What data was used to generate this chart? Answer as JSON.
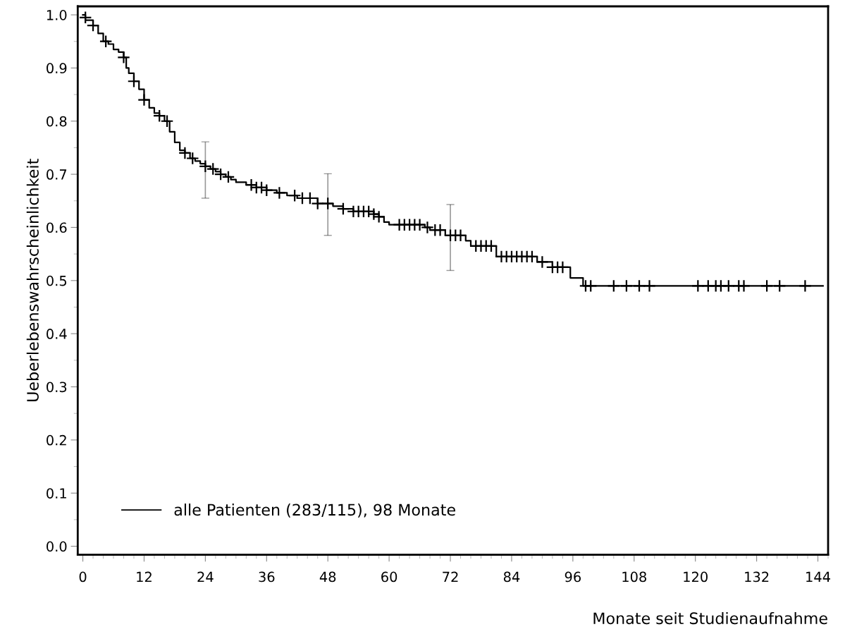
{
  "chart_data": {
    "type": "step",
    "xlabel": "Monate seit Studienaufnahme",
    "ylabel": "Ueberlebenswahrscheinlichkeit",
    "xlim": [
      -1,
      146
    ],
    "ylim": [
      -0.016,
      1.016
    ],
    "xticks": [
      0,
      12,
      24,
      36,
      48,
      60,
      72,
      84,
      96,
      108,
      120,
      132,
      144
    ],
    "yticks": [
      {
        "value": 0,
        "label": "0.0"
      },
      0.1,
      0.2,
      0.3,
      0.4,
      0.5,
      0.6,
      0.7,
      0.8,
      0.9,
      {
        "value": 1,
        "label": "1.0"
      }
    ],
    "grid": false,
    "legend": "bottom left",
    "series": [
      {
        "name": "alle Patienten (283/115), 98 Monate",
        "color": "#000000",
        "x": [
          0,
          0.5,
          2,
          3,
          4,
          5,
          6,
          7,
          8,
          8.5,
          9,
          10,
          11,
          12,
          13,
          14,
          15,
          16,
          17,
          18,
          19,
          20,
          21,
          22,
          23,
          24,
          25,
          26,
          27,
          28,
          29,
          30,
          32,
          34,
          36,
          38,
          40,
          42,
          46,
          48,
          49,
          51,
          53,
          57,
          58,
          59,
          60,
          67,
          68,
          71,
          72,
          75,
          76,
          81,
          89,
          92,
          95.5,
          98,
          145
        ],
        "values": [
          1.0,
          0.99,
          0.98,
          0.965,
          0.95,
          0.945,
          0.935,
          0.93,
          0.92,
          0.9,
          0.89,
          0.875,
          0.86,
          0.84,
          0.825,
          0.815,
          0.81,
          0.8,
          0.78,
          0.76,
          0.745,
          0.74,
          0.73,
          0.725,
          0.72,
          0.715,
          0.71,
          0.705,
          0.7,
          0.695,
          0.69,
          0.685,
          0.68,
          0.675,
          0.67,
          0.665,
          0.66,
          0.655,
          0.645,
          0.645,
          0.64,
          0.635,
          0.63,
          0.625,
          0.62,
          0.61,
          0.605,
          0.6,
          0.595,
          0.585,
          0.585,
          0.575,
          0.565,
          0.545,
          0.535,
          0.525,
          0.505,
          0.49,
          0.49
        ],
        "errors": [
          null,
          null,
          null,
          null,
          null,
          null,
          null,
          null,
          null,
          null,
          null,
          null,
          null,
          null,
          null,
          null,
          null,
          null,
          null,
          null,
          null,
          null,
          null,
          null,
          null,
          [
            0.655,
            0.761
          ],
          null,
          null,
          null,
          null,
          null,
          null,
          null,
          null,
          null,
          null,
          null,
          null,
          null,
          [
            0.585,
            0.701
          ],
          null,
          null,
          null,
          null,
          null,
          null,
          null,
          null,
          null,
          null,
          [
            0.519,
            0.643
          ],
          null,
          null,
          null,
          null,
          null,
          null,
          null,
          null
        ]
      },
      {
        "type": "scatter",
        "color": "#000000",
        "marker": "cross",
        "x": [
          0.5,
          2,
          4.5,
          8,
          10,
          12,
          15,
          16.5,
          20,
          21.5,
          24,
          25.5,
          27,
          28.5,
          33,
          34,
          35,
          36,
          38.5,
          41.5,
          43,
          44.5,
          46,
          48,
          51,
          53,
          54,
          55,
          56,
          57,
          58,
          62,
          63,
          64,
          65,
          66,
          67.5,
          69,
          70,
          72,
          73,
          74,
          77,
          78,
          79,
          80,
          82,
          83,
          84,
          85,
          86,
          87,
          88,
          90,
          92,
          93,
          94,
          98.5,
          99.5,
          104,
          106.5,
          109,
          111,
          120.5,
          122.5,
          124,
          125,
          126.5,
          128.5,
          129.5,
          134,
          136.5,
          141.5
        ],
        "values": [
          0.995,
          0.98,
          0.95,
          0.92,
          0.875,
          0.84,
          0.81,
          0.8,
          0.74,
          0.73,
          0.715,
          0.71,
          0.7,
          0.695,
          0.68,
          0.675,
          0.675,
          0.67,
          0.665,
          0.66,
          0.655,
          0.655,
          0.645,
          0.645,
          0.635,
          0.63,
          0.63,
          0.63,
          0.63,
          0.625,
          0.62,
          0.605,
          0.605,
          0.605,
          0.605,
          0.605,
          0.6,
          0.595,
          0.595,
          0.585,
          0.585,
          0.585,
          0.565,
          0.565,
          0.565,
          0.565,
          0.545,
          0.545,
          0.545,
          0.545,
          0.545,
          0.545,
          0.545,
          0.535,
          0.525,
          0.525,
          0.525,
          0.49,
          0.49,
          0.49,
          0.49,
          0.49,
          0.49,
          0.49,
          0.49,
          0.49,
          0.49,
          0.49,
          0.49,
          0.49,
          0.49,
          0.49,
          0.49
        ]
      }
    ]
  }
}
